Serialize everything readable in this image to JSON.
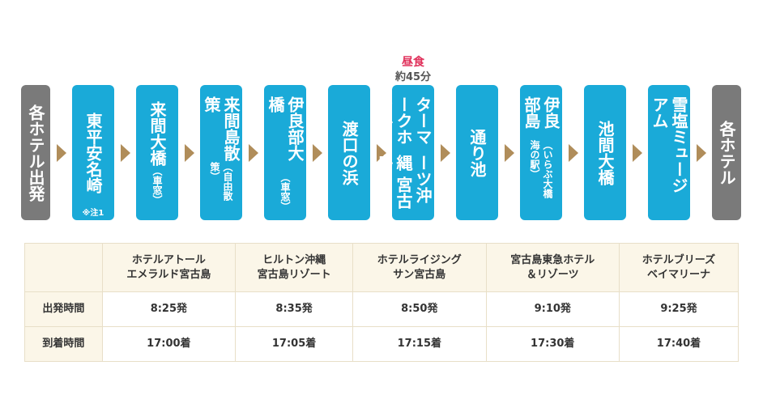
{
  "route": {
    "lunch": {
      "label": "昼食",
      "duration": "約45分",
      "at": 6
    },
    "stops": [
      {
        "label": "各ホテル出発",
        "color": "#7a7a7a"
      },
      {
        "label": "東平安名崎",
        "note": "※注1",
        "color": "#1aaad8"
      },
      {
        "label": "来間大橋",
        "sub": "（車窓）",
        "color": "#1aaad8"
      },
      {
        "label": "来間島散策",
        "sub": "（自由散策）",
        "color": "#1aaad8"
      },
      {
        "label": "伊良部大橋",
        "sub": "（車窓）",
        "color": "#1aaad8"
      },
      {
        "label": "渡口の浜",
        "color": "#1aaad8"
      },
      {
        "label": "ウォーターマークホテル",
        "label2": "&リゾーツ沖縄 宮古島",
        "color": "#1aaad8"
      },
      {
        "label": "通り池",
        "color": "#1aaad8"
      },
      {
        "label": "伊良部島",
        "sub": "（いらぶ大橋 海の駅）",
        "color": "#1aaad8"
      },
      {
        "label": "池間大橋",
        "color": "#1aaad8"
      },
      {
        "label": "雪塩ミュージアム",
        "color": "#1aaad8"
      },
      {
        "label": "各ホテル",
        "color": "#7a7a7a"
      }
    ]
  },
  "table": {
    "header": [
      "ホテルアトール\nエメラルド宮古島",
      "ヒルトン沖縄\n宮古島リゾート",
      "ホテルライジング\nサン宮古島",
      "宮古島東急ホテル\n＆リゾーツ",
      "ホテルブリーズ\nベイマリーナ"
    ],
    "rows": [
      [
        "出発時間",
        "8:25発",
        "8:35発",
        "8:50発",
        "9:10発",
        "9:25発"
      ],
      [
        "到着時間",
        "17:00着",
        "17:05着",
        "17:15着",
        "17:30着",
        "17:40着"
      ]
    ]
  }
}
